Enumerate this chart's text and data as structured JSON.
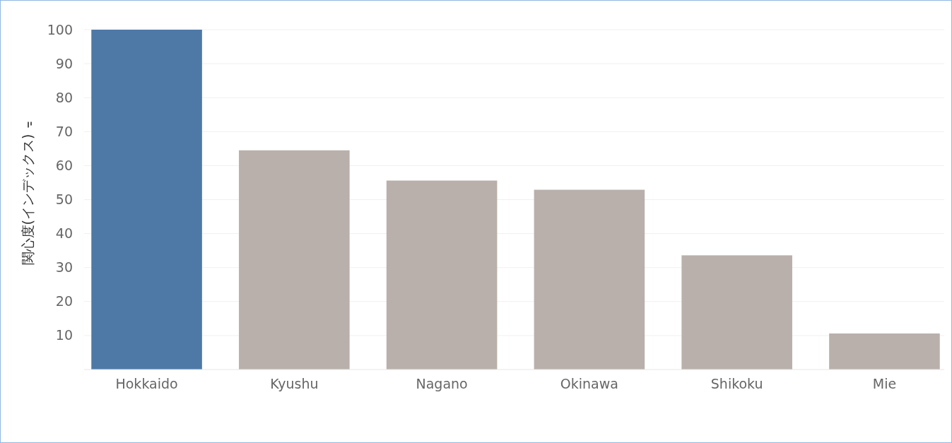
{
  "chart_data": {
    "type": "bar",
    "ylabel": "関心度(インデックス)",
    "categories": [
      "Hokkaido",
      "Kyushu",
      "Nagano",
      "Okinawa",
      "Shikoku",
      "Mie"
    ],
    "values": [
      100,
      64.5,
      55.6,
      52.9,
      33.6,
      10.6
    ],
    "colors": [
      "#4e79a7",
      "#b9b0ab",
      "#b9b0ab",
      "#b9b0ab",
      "#b9b0ab",
      "#b9b0ab"
    ],
    "ylim": [
      0,
      100
    ],
    "yticks": [
      10,
      20,
      30,
      40,
      50,
      60,
      70,
      80,
      90,
      100
    ],
    "grid": "y"
  }
}
